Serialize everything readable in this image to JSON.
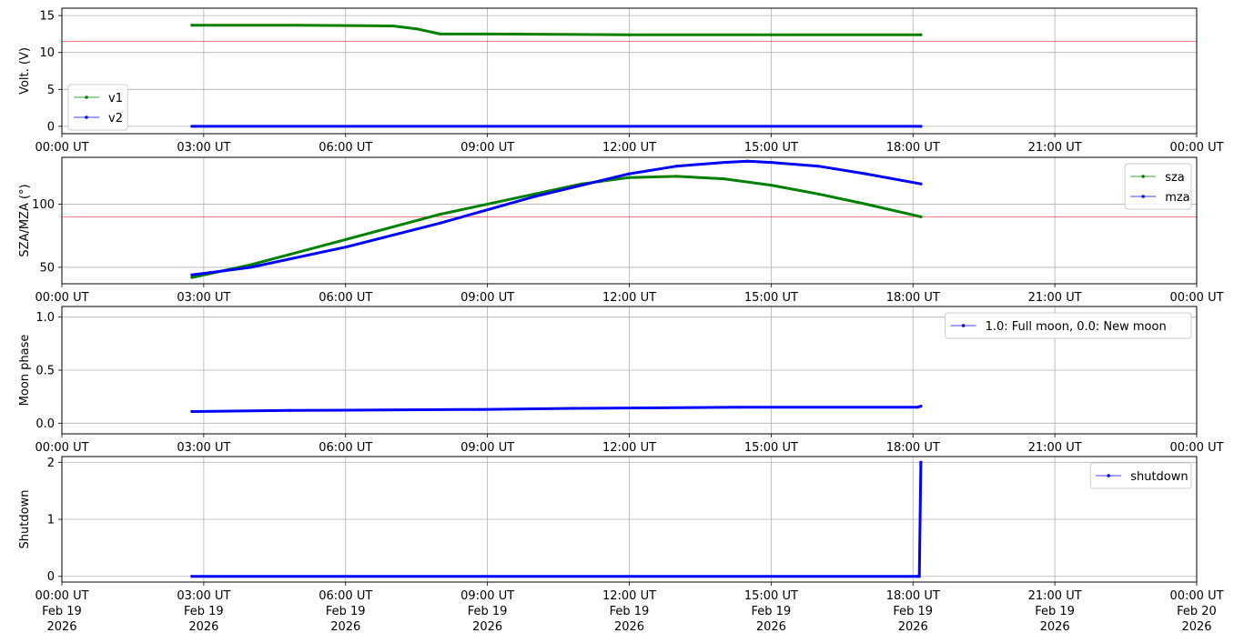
{
  "colors": {
    "green": "#008000",
    "blue": "#0000ff",
    "threshold": "#ff0000",
    "grid": "#b0b0b0",
    "axis": "#000000"
  },
  "x_axis": {
    "tick_labels": [
      "00:00 UT",
      "03:00 UT",
      "06:00 UT",
      "09:00 UT",
      "12:00 UT",
      "15:00 UT",
      "18:00 UT",
      "21:00 UT",
      "00:00 UT"
    ],
    "bottom_date_lines": [
      [
        "Feb 19",
        "2026"
      ],
      [
        "Feb 19",
        "2026"
      ],
      [
        "Feb 19",
        "2026"
      ],
      [
        "Feb 19",
        "2026"
      ],
      [
        "Feb 19",
        "2026"
      ],
      [
        "Feb 19",
        "2026"
      ],
      [
        "Feb 19",
        "2026"
      ],
      [
        "Feb 19",
        "2026"
      ],
      [
        "Feb 20",
        "2026"
      ]
    ]
  },
  "chart_data": [
    {
      "type": "line",
      "ylabel": "Volt. (V)",
      "xlim": [
        "2026-02-19T00:00:00Z",
        "2026-02-20T00:00:00Z"
      ],
      "ylim": [
        -1,
        16
      ],
      "yticks": [
        0,
        5,
        10,
        15
      ],
      "grid": true,
      "legend": "center-left",
      "hlines": [
        11.5
      ],
      "series": [
        {
          "name": "v1",
          "color": "green",
          "x": [
            "2026-02-19T02:45:00Z",
            "2026-02-19T05:00:00Z",
            "2026-02-19T07:00:00Z",
            "2026-02-19T07:30:00Z",
            "2026-02-19T08:00:00Z",
            "2026-02-19T09:00:00Z",
            "2026-02-19T12:00:00Z",
            "2026-02-19T15:00:00Z",
            "2026-02-19T18:10:00Z"
          ],
          "y": [
            13.7,
            13.7,
            13.6,
            13.2,
            12.5,
            12.5,
            12.4,
            12.4,
            12.4
          ]
        },
        {
          "name": "v2",
          "color": "blue",
          "x": [
            "2026-02-19T02:45:00Z",
            "2026-02-19T18:10:00Z"
          ],
          "y": [
            0.0,
            0.0
          ]
        }
      ]
    },
    {
      "type": "line",
      "ylabel": "SZA/MZA (°)",
      "xlim": [
        "2026-02-19T00:00:00Z",
        "2026-02-20T00:00:00Z"
      ],
      "ylim": [
        37,
        137
      ],
      "yticks": [
        50,
        100
      ],
      "grid": true,
      "legend": "top-right",
      "hlines": [
        90
      ],
      "series": [
        {
          "name": "sza",
          "color": "green",
          "x": [
            "2026-02-19T02:45:00Z",
            "2026-02-19T04:00:00Z",
            "2026-02-19T06:00:00Z",
            "2026-02-19T08:00:00Z",
            "2026-02-19T10:00:00Z",
            "2026-02-19T11:00:00Z",
            "2026-02-19T12:00:00Z",
            "2026-02-19T13:00:00Z",
            "2026-02-19T14:00:00Z",
            "2026-02-19T15:00:00Z",
            "2026-02-19T16:00:00Z",
            "2026-02-19T17:00:00Z",
            "2026-02-19T18:10:00Z"
          ],
          "y": [
            42,
            52,
            72,
            92,
            108,
            116,
            121,
            122,
            120,
            115,
            108,
            100,
            90
          ]
        },
        {
          "name": "mza",
          "color": "blue",
          "x": [
            "2026-02-19T02:45:00Z",
            "2026-02-19T04:00:00Z",
            "2026-02-19T06:00:00Z",
            "2026-02-19T08:00:00Z",
            "2026-02-19T10:00:00Z",
            "2026-02-19T12:00:00Z",
            "2026-02-19T13:00:00Z",
            "2026-02-19T14:00:00Z",
            "2026-02-19T14:30:00Z",
            "2026-02-19T15:00:00Z",
            "2026-02-19T16:00:00Z",
            "2026-02-19T17:00:00Z",
            "2026-02-19T18:10:00Z"
          ],
          "y": [
            44,
            50,
            66,
            85,
            106,
            124,
            130,
            133,
            134,
            133,
            130,
            124,
            116
          ]
        }
      ]
    },
    {
      "type": "line",
      "ylabel": "Moon phase",
      "xlim": [
        "2026-02-19T00:00:00Z",
        "2026-02-20T00:00:00Z"
      ],
      "ylim": [
        -0.1,
        1.1
      ],
      "yticks": [
        0.0,
        0.5,
        1.0
      ],
      "ytick_labels": [
        "0.0",
        "0.5",
        "1.0"
      ],
      "grid": true,
      "legend": "top-right",
      "series": [
        {
          "name": "1.0: Full moon, 0.0: New moon",
          "color": "blue",
          "x": [
            "2026-02-19T02:45:00Z",
            "2026-02-19T04:50:00Z",
            "2026-02-19T08:50:00Z",
            "2026-02-19T10:50:00Z",
            "2026-02-19T14:20:00Z",
            "2026-02-19T18:05:00Z",
            "2026-02-19T18:10:00Z"
          ],
          "y": [
            0.11,
            0.12,
            0.13,
            0.14,
            0.15,
            0.15,
            0.16
          ]
        }
      ]
    },
    {
      "type": "line",
      "ylabel": "Shutdown",
      "xlim": [
        "2026-02-19T00:00:00Z",
        "2026-02-20T00:00:00Z"
      ],
      "ylim": [
        -0.1,
        2.1
      ],
      "yticks": [
        0,
        1,
        2
      ],
      "grid": true,
      "legend": "top-right",
      "series": [
        {
          "name": "shutdown",
          "color": "blue",
          "x": [
            "2026-02-19T02:45:00Z",
            "2026-02-19T18:05:00Z",
            "2026-02-19T18:08:00Z",
            "2026-02-19T18:10:00Z"
          ],
          "y": [
            0,
            0,
            0,
            2
          ]
        }
      ]
    }
  ]
}
